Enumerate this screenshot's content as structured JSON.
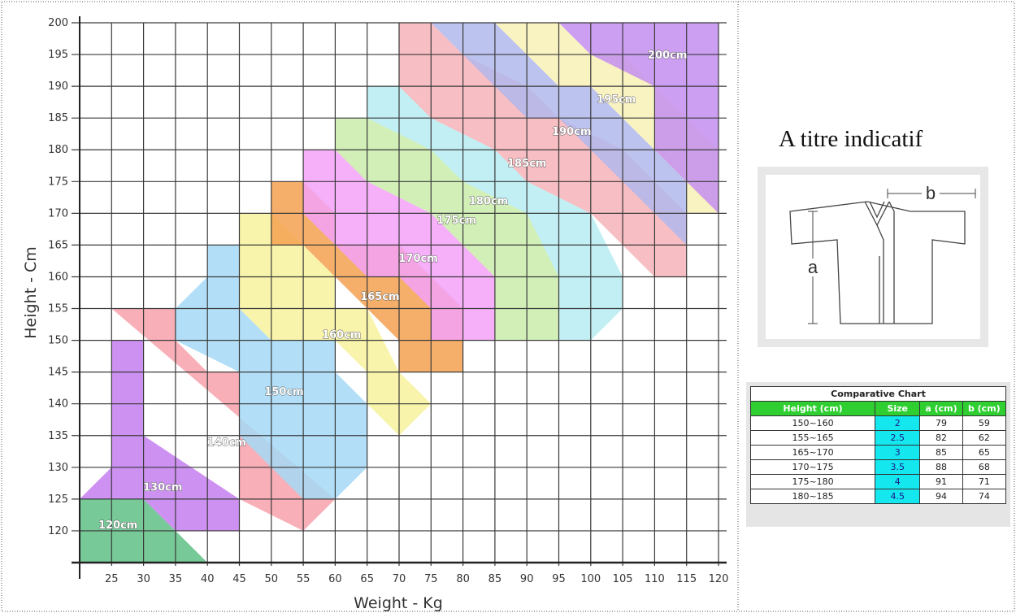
{
  "chart_data": {
    "type": "heatmap",
    "title": "",
    "xlabel": "Weight - Kg",
    "ylabel": "Height - Cm",
    "xlim": [
      20,
      120
    ],
    "ylim": [
      115,
      200
    ],
    "x_ticks": [
      "25",
      "30",
      "35",
      "40",
      "45",
      "50",
      "55",
      "60",
      "65",
      "70",
      "75",
      "80",
      "85",
      "90",
      "95",
      "100",
      "105",
      "110",
      "115",
      "120"
    ],
    "y_ticks": [
      "120",
      "125",
      "130",
      "135",
      "140",
      "145",
      "150",
      "155",
      "160",
      "165",
      "170",
      "175",
      "180",
      "185",
      "190",
      "195",
      "200"
    ],
    "grid": true,
    "zones": [
      {
        "label": "120cm",
        "color": "#5fbf85",
        "polygon": [
          [
            20,
            125
          ],
          [
            30,
            125
          ],
          [
            40,
            115
          ],
          [
            20,
            115
          ]
        ],
        "label_at": [
          26,
          121
        ]
      },
      {
        "label": "130cm",
        "color": "#c47ef0",
        "polygon": [
          [
            20,
            125
          ],
          [
            25,
            130
          ],
          [
            25,
            150
          ],
          [
            30,
            150
          ],
          [
            30,
            135
          ],
          [
            45,
            125
          ],
          [
            45,
            120
          ],
          [
            35,
            120
          ],
          [
            30,
            125
          ]
        ],
        "label_at": [
          33,
          127
        ]
      },
      {
        "label": "140cm",
        "color": "#f8a1aa",
        "polygon": [
          [
            25,
            155
          ],
          [
            35,
            155
          ],
          [
            35,
            150
          ],
          [
            40,
            145
          ],
          [
            45,
            145
          ],
          [
            45,
            125
          ],
          [
            55,
            120
          ],
          [
            60,
            125
          ],
          [
            55,
            125
          ],
          [
            60,
            125
          ]
        ],
        "label_at": [
          43,
          134
        ]
      },
      {
        "label": "150cm",
        "color": "#a5d9f6",
        "polygon": [
          [
            35,
            155
          ],
          [
            40,
            160
          ],
          [
            40,
            165
          ],
          [
            45,
            165
          ],
          [
            45,
            155
          ],
          [
            50,
            150
          ],
          [
            60,
            150
          ],
          [
            60,
            145
          ],
          [
            65,
            140
          ],
          [
            65,
            130
          ],
          [
            60,
            125
          ],
          [
            55,
            125
          ],
          [
            45,
            135
          ],
          [
            45,
            145
          ],
          [
            35,
            150
          ]
        ],
        "label_at": [
          52,
          142
        ]
      },
      {
        "label": "160cm",
        "color": "#f8f29c",
        "polygon": [
          [
            45,
            170
          ],
          [
            50,
            170
          ],
          [
            55,
            165
          ],
          [
            60,
            160
          ],
          [
            60,
            155
          ],
          [
            65,
            155
          ],
          [
            70,
            145
          ],
          [
            75,
            140
          ],
          [
            70,
            135
          ],
          [
            65,
            140
          ],
          [
            65,
            145
          ],
          [
            60,
            150
          ],
          [
            50,
            150
          ],
          [
            45,
            155
          ],
          [
            45,
            165
          ]
        ],
        "label_at": [
          61,
          151
        ]
      },
      {
        "label": "165cm",
        "color": "#f5a150",
        "polygon": [
          [
            50,
            175
          ],
          [
            55,
            175
          ],
          [
            60,
            170
          ],
          [
            60,
            165
          ],
          [
            70,
            165
          ],
          [
            75,
            160
          ],
          [
            80,
            155
          ],
          [
            80,
            145
          ],
          [
            70,
            145
          ],
          [
            70,
            150
          ],
          [
            65,
            155
          ],
          [
            60,
            160
          ],
          [
            55,
            165
          ],
          [
            50,
            165
          ]
        ],
        "label_at": [
          67,
          157
        ]
      },
      {
        "label": "170cm",
        "color": "#f3a2f8",
        "polygon": [
          [
            55,
            180
          ],
          [
            60,
            180
          ],
          [
            65,
            175
          ],
          [
            75,
            170
          ],
          [
            80,
            165
          ],
          [
            85,
            160
          ],
          [
            85,
            150
          ],
          [
            75,
            150
          ],
          [
            75,
            155
          ],
          [
            70,
            160
          ],
          [
            65,
            160
          ],
          [
            60,
            165
          ],
          [
            55,
            170
          ]
        ],
        "label_at": [
          73,
          163
        ]
      },
      {
        "label": "175cm",
        "color": "#c9ecaa",
        "polygon": [
          [
            60,
            185
          ],
          [
            65,
            185
          ],
          [
            75,
            180
          ],
          [
            80,
            175
          ],
          [
            90,
            170
          ],
          [
            95,
            160
          ],
          [
            95,
            150
          ],
          [
            85,
            150
          ],
          [
            85,
            160
          ],
          [
            80,
            165
          ],
          [
            75,
            170
          ],
          [
            65,
            175
          ],
          [
            60,
            180
          ]
        ],
        "label_at": [
          79,
          169
        ]
      },
      {
        "label": "180cm",
        "color": "#b6ecf2",
        "polygon": [
          [
            65,
            190
          ],
          [
            70,
            190
          ],
          [
            75,
            185
          ],
          [
            85,
            180
          ],
          [
            90,
            175
          ],
          [
            100,
            170
          ],
          [
            105,
            160
          ],
          [
            105,
            155
          ],
          [
            100,
            150
          ],
          [
            95,
            150
          ],
          [
            95,
            160
          ],
          [
            90,
            170
          ],
          [
            80,
            175
          ],
          [
            75,
            180
          ],
          [
            65,
            185
          ]
        ],
        "label_at": [
          84,
          172
        ]
      },
      {
        "label": "185cm",
        "color": "#f6b3b8",
        "polygon": [
          [
            70,
            200
          ],
          [
            75,
            200
          ],
          [
            80,
            195
          ],
          [
            90,
            190
          ],
          [
            95,
            185
          ],
          [
            105,
            180
          ],
          [
            115,
            170
          ],
          [
            115,
            160
          ],
          [
            110,
            160
          ],
          [
            105,
            165
          ],
          [
            100,
            170
          ],
          [
            90,
            175
          ],
          [
            85,
            180
          ],
          [
            75,
            185
          ],
          [
            70,
            190
          ]
        ],
        "label_at": [
          90,
          178
        ]
      },
      {
        "label": "190cm",
        "color": "#b2b8ec",
        "polygon": [
          [
            75,
            200
          ],
          [
            85,
            200
          ],
          [
            95,
            190
          ],
          [
            100,
            190
          ],
          [
            105,
            185
          ],
          [
            110,
            180
          ],
          [
            115,
            175
          ],
          [
            115,
            165
          ],
          [
            110,
            170
          ],
          [
            105,
            175
          ],
          [
            100,
            180
          ],
          [
            95,
            185
          ],
          [
            90,
            185
          ],
          [
            80,
            195
          ]
        ],
        "label_at": [
          97,
          183
        ]
      },
      {
        "label": "195cm",
        "color": "#f8f1b6",
        "polygon": [
          [
            85,
            200
          ],
          [
            95,
            200
          ],
          [
            100,
            195
          ],
          [
            105,
            195
          ],
          [
            110,
            190
          ],
          [
            120,
            180
          ],
          [
            120,
            170
          ],
          [
            115,
            170
          ],
          [
            115,
            175
          ],
          [
            105,
            185
          ],
          [
            100,
            190
          ],
          [
            95,
            190
          ]
        ],
        "label_at": [
          104,
          188
        ]
      },
      {
        "label": "200cm",
        "color": "#c48ef0",
        "polygon": [
          [
            95,
            200
          ],
          [
            120,
            200
          ],
          [
            120,
            170
          ],
          [
            110,
            180
          ],
          [
            110,
            190
          ],
          [
            100,
            195
          ]
        ],
        "label_at": [
          112,
          195
        ]
      }
    ]
  },
  "side": {
    "indicatif": "A titre indicatif",
    "diagram": {
      "label_a": "a",
      "label_b": "b"
    }
  },
  "table": {
    "caption": "Comparative Chart",
    "headers": [
      "Height (cm)",
      "Size",
      "a (cm)",
      "b (cm)"
    ],
    "rows": [
      [
        "150~160",
        "2",
        "79",
        "59"
      ],
      [
        "155~165",
        "2.5",
        "82",
        "62"
      ],
      [
        "165~170",
        "3",
        "85",
        "65"
      ],
      [
        "170~175",
        "3.5",
        "88",
        "68"
      ],
      [
        "175~180",
        "4",
        "91",
        "71"
      ],
      [
        "180~185",
        "4.5",
        "94",
        "74"
      ]
    ],
    "colors": {
      "header": "#2fcf32",
      "size_cell": "#14e7ee"
    }
  }
}
